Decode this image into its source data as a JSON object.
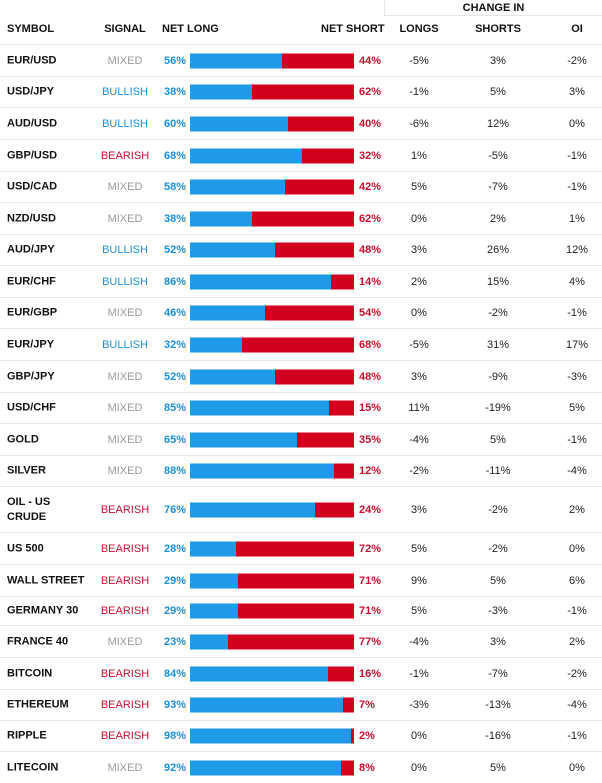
{
  "header": {
    "change_in": "CHANGE IN",
    "symbol": "SYMBOL",
    "signal": "SIGNAL",
    "net_long": "NET LONG",
    "net_short": "NET SHORT",
    "longs": "LONGS",
    "shorts": "SHORTS",
    "oi": "OI"
  },
  "colors": {
    "long_blue": "#1e9be6",
    "short_red": "#d0021b",
    "bullish": "#1f8fda",
    "bearish": "#c8102e",
    "mixed": "#9b9b9b"
  },
  "rows": [
    {
      "symbol": "EUR/USD",
      "signal": "MIXED",
      "net_long": "56%",
      "net_short": "44%",
      "longs": "-5%",
      "shorts": "3%",
      "oi": "-2%"
    },
    {
      "symbol": "USD/JPY",
      "signal": "BULLISH",
      "net_long": "38%",
      "net_short": "62%",
      "longs": "-1%",
      "shorts": "5%",
      "oi": "3%"
    },
    {
      "symbol": "AUD/USD",
      "signal": "BULLISH",
      "net_long": "60%",
      "net_short": "40%",
      "longs": "-6%",
      "shorts": "12%",
      "oi": "0%"
    },
    {
      "symbol": "GBP/USD",
      "signal": "BEARISH",
      "net_long": "68%",
      "net_short": "32%",
      "longs": "1%",
      "shorts": "-5%",
      "oi": "-1%"
    },
    {
      "symbol": "USD/CAD",
      "signal": "MIXED",
      "net_long": "58%",
      "net_short": "42%",
      "longs": "5%",
      "shorts": "-7%",
      "oi": "-1%"
    },
    {
      "symbol": "NZD/USD",
      "signal": "MIXED",
      "net_long": "38%",
      "net_short": "62%",
      "longs": "0%",
      "shorts": "2%",
      "oi": "1%"
    },
    {
      "symbol": "AUD/JPY",
      "signal": "BULLISH",
      "net_long": "52%",
      "net_short": "48%",
      "longs": "3%",
      "shorts": "26%",
      "oi": "12%"
    },
    {
      "symbol": "EUR/CHF",
      "signal": "BULLISH",
      "net_long": "86%",
      "net_short": "14%",
      "longs": "2%",
      "shorts": "15%",
      "oi": "4%"
    },
    {
      "symbol": "EUR/GBP",
      "signal": "MIXED",
      "net_long": "46%",
      "net_short": "54%",
      "longs": "0%",
      "shorts": "-2%",
      "oi": "-1%"
    },
    {
      "symbol": "EUR/JPY",
      "signal": "BULLISH",
      "net_long": "32%",
      "net_short": "68%",
      "longs": "-5%",
      "shorts": "31%",
      "oi": "17%"
    },
    {
      "symbol": "GBP/JPY",
      "signal": "MIXED",
      "net_long": "52%",
      "net_short": "48%",
      "longs": "3%",
      "shorts": "-9%",
      "oi": "-3%"
    },
    {
      "symbol": "USD/CHF",
      "signal": "MIXED",
      "net_long": "85%",
      "net_short": "15%",
      "longs": "11%",
      "shorts": "-19%",
      "oi": "5%"
    },
    {
      "symbol": "GOLD",
      "signal": "MIXED",
      "net_long": "65%",
      "net_short": "35%",
      "longs": "-4%",
      "shorts": "5%",
      "oi": "-1%"
    },
    {
      "symbol": "SILVER",
      "signal": "MIXED",
      "net_long": "88%",
      "net_short": "12%",
      "longs": "-2%",
      "shorts": "-11%",
      "oi": "-4%"
    },
    {
      "symbol": "OIL - US CRUDE",
      "signal": "BEARISH",
      "net_long": "76%",
      "net_short": "24%",
      "longs": "3%",
      "shorts": "-2%",
      "oi": "2%"
    },
    {
      "symbol": "US 500",
      "signal": "BEARISH",
      "net_long": "28%",
      "net_short": "72%",
      "longs": "5%",
      "shorts": "-2%",
      "oi": "0%"
    },
    {
      "symbol": "WALL STREET",
      "signal": "BEARISH",
      "net_long": "29%",
      "net_short": "71%",
      "longs": "9%",
      "shorts": "5%",
      "oi": "6%"
    },
    {
      "symbol": "GERMANY 30",
      "signal": "BEARISH",
      "net_long": "29%",
      "net_short": "71%",
      "longs": "5%",
      "shorts": "-3%",
      "oi": "-1%"
    },
    {
      "symbol": "FRANCE 40",
      "signal": "MIXED",
      "net_long": "23%",
      "net_short": "77%",
      "longs": "-4%",
      "shorts": "3%",
      "oi": "2%"
    },
    {
      "symbol": "BITCOIN",
      "signal": "BEARISH",
      "net_long": "84%",
      "net_short": "16%",
      "longs": "-1%",
      "shorts": "-7%",
      "oi": "-2%"
    },
    {
      "symbol": "ETHEREUM",
      "signal": "BEARISH",
      "net_long": "93%",
      "net_short": "7%",
      "longs": "-3%",
      "shorts": "-13%",
      "oi": "-4%"
    },
    {
      "symbol": "RIPPLE",
      "signal": "BEARISH",
      "net_long": "98%",
      "net_short": "2%",
      "longs": "0%",
      "shorts": "-16%",
      "oi": "-1%"
    },
    {
      "symbol": "LITECOIN",
      "signal": "MIXED",
      "net_long": "92%",
      "net_short": "8%",
      "longs": "0%",
      "shorts": "5%",
      "oi": "0%"
    }
  ]
}
